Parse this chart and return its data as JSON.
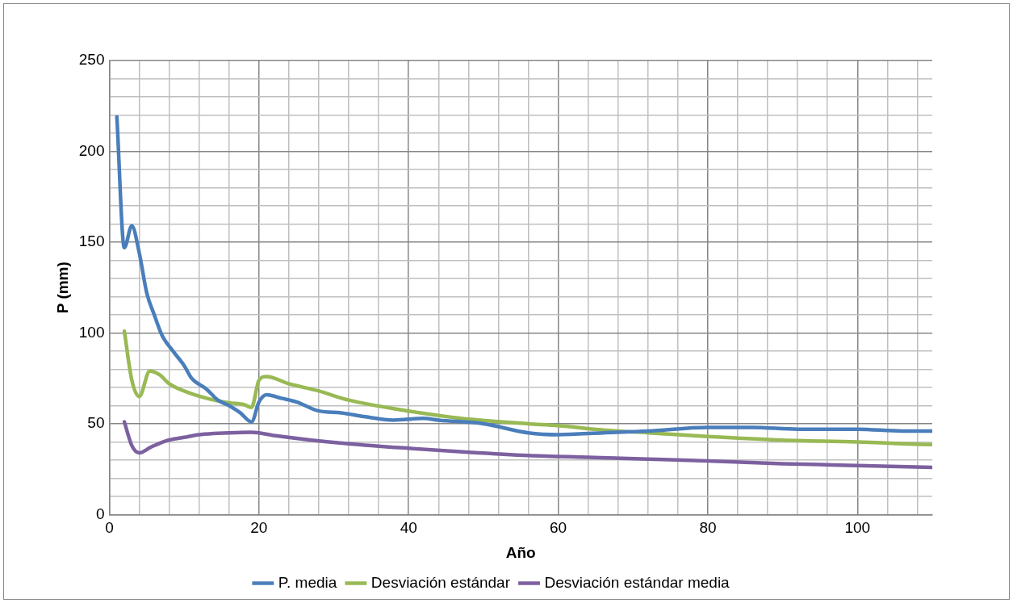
{
  "chart_data": {
    "type": "line",
    "xlabel": "Año",
    "ylabel": "P (mm)",
    "xlim": [
      0,
      110
    ],
    "ylim": [
      0,
      250
    ],
    "xticks": [
      0,
      {
        "value": 4,
        "label": null
      },
      {
        "value": 8,
        "label": null
      },
      {
        "value": 12,
        "label": null
      },
      {
        "value": 16,
        "label": null
      },
      20,
      {
        "value": 24,
        "label": null
      },
      {
        "value": 28,
        "label": null
      },
      {
        "value": 32,
        "label": null
      },
      {
        "value": 36,
        "label": null
      },
      40,
      {
        "value": 44,
        "label": null
      },
      {
        "value": 48,
        "label": null
      },
      {
        "value": 52,
        "label": null
      },
      {
        "value": 56,
        "label": null
      },
      60,
      {
        "value": 64,
        "label": null
      },
      {
        "value": 68,
        "label": null
      },
      {
        "value": 72,
        "label": null
      },
      {
        "value": 76,
        "label": null
      },
      80,
      {
        "value": 84,
        "label": null
      },
      {
        "value": 88,
        "label": null
      },
      {
        "value": 92,
        "label": null
      },
      {
        "value": 96,
        "label": null
      },
      100,
      {
        "value": 104,
        "label": null
      },
      {
        "value": 108,
        "label": null
      }
    ],
    "yticks": [
      0,
      {
        "value": 10,
        "label": null
      },
      {
        "value": 20,
        "label": null
      },
      {
        "value": 30,
        "label": null
      },
      {
        "value": 40,
        "label": null
      },
      50,
      {
        "value": 60,
        "label": null
      },
      {
        "value": 70,
        "label": null
      },
      {
        "value": 80,
        "label": null
      },
      {
        "value": 90,
        "label": null
      },
      100,
      {
        "value": 110,
        "label": null
      },
      {
        "value": 120,
        "label": null
      },
      {
        "value": 130,
        "label": null
      },
      {
        "value": 140,
        "label": null
      },
      150,
      {
        "value": 160,
        "label": null
      },
      {
        "value": 170,
        "label": null
      },
      {
        "value": 180,
        "label": null
      },
      {
        "value": 190,
        "label": null
      },
      200,
      {
        "value": 210,
        "label": null
      },
      {
        "value": 220,
        "label": null
      },
      {
        "value": 230,
        "label": null
      },
      {
        "value": 240,
        "label": null
      },
      250
    ],
    "grid": true,
    "legend": "bottom",
    "marker": "none",
    "line_style": "solid",
    "series": [
      {
        "name": "P. media",
        "color": "#4a7ebb",
        "x": [
          1,
          2,
          3,
          4,
          5,
          6,
          7,
          8.5,
          10,
          11,
          13,
          14.5,
          16,
          17.5,
          19,
          20,
          21,
          23,
          25,
          28,
          31,
          34,
          38,
          42,
          44,
          50,
          56,
          60,
          66,
          72,
          80,
          86,
          92,
          100,
          106,
          110
        ],
        "values": [
          219,
          147,
          159,
          144,
          122,
          110,
          99,
          90,
          82,
          75,
          69,
          63,
          60,
          56,
          51,
          62,
          66,
          64,
          62,
          57,
          56,
          54,
          52,
          53,
          52,
          50,
          45,
          44,
          45,
          46,
          48,
          48,
          47,
          47,
          46,
          46
        ]
      },
      {
        "name": "Desviación estándar",
        "color": "#98b954",
        "x": [
          2,
          3,
          4,
          5.4,
          6.7,
          8,
          10,
          13,
          16,
          18,
          19,
          20,
          21,
          24,
          28,
          32,
          40,
          47,
          56,
          60,
          66,
          72,
          80,
          90,
          100,
          106,
          110
        ],
        "values": [
          101,
          74,
          65,
          79,
          77,
          72,
          68,
          64,
          61.5,
          60.5,
          59,
          74,
          76,
          72,
          68,
          63,
          57,
          53,
          50,
          49,
          46.5,
          45,
          43,
          41,
          40,
          39,
          38.5
        ]
      },
      {
        "name": "Desviación estándar media",
        "color": "#7d60a0",
        "x": [
          2,
          3,
          4,
          5.5,
          7.5,
          10,
          12,
          16,
          19,
          22,
          27,
          32,
          40,
          48,
          56,
          64,
          72,
          80,
          90,
          100,
          110
        ],
        "values": [
          51,
          38,
          34,
          37,
          40.5,
          42.5,
          44,
          45,
          45.3,
          43.5,
          41,
          39,
          36.5,
          34.3,
          32.5,
          31.5,
          30.5,
          29.5,
          28,
          27,
          26
        ]
      }
    ]
  }
}
